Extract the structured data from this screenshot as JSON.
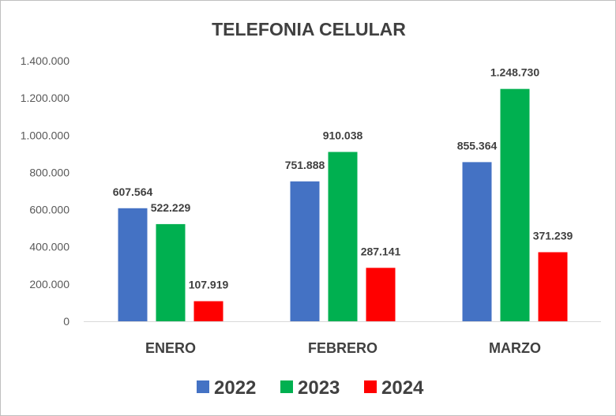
{
  "chart_data": {
    "type": "bar",
    "title": "TELEFONIA CELULAR",
    "categories": [
      "ENERO",
      "FEBRERO",
      "MARZO"
    ],
    "series": [
      {
        "name": "2022",
        "color": "#4472c4",
        "values": [
          607564,
          751888,
          855364
        ],
        "labels": [
          "607.564",
          "751.888",
          "855.364"
        ]
      },
      {
        "name": "2023",
        "color": "#00b050",
        "values": [
          522229,
          910038,
          1248730
        ],
        "labels": [
          "522.229",
          "910.038",
          "1.248.730"
        ]
      },
      {
        "name": "2024",
        "color": "#ff0000",
        "values": [
          107919,
          287141,
          371239
        ],
        "labels": [
          "107.919",
          "287.141",
          "371.239"
        ]
      }
    ],
    "ylim": [
      0,
      1400000
    ],
    "yticks": [
      0,
      200000,
      400000,
      600000,
      800000,
      1000000,
      1200000,
      1400000
    ],
    "ytick_labels": [
      "0",
      "200.000",
      "400.000",
      "600.000",
      "800.000",
      "1.000.000",
      "1.200.000",
      "1.400.000"
    ],
    "grid": false,
    "legend_position": "bottom"
  }
}
